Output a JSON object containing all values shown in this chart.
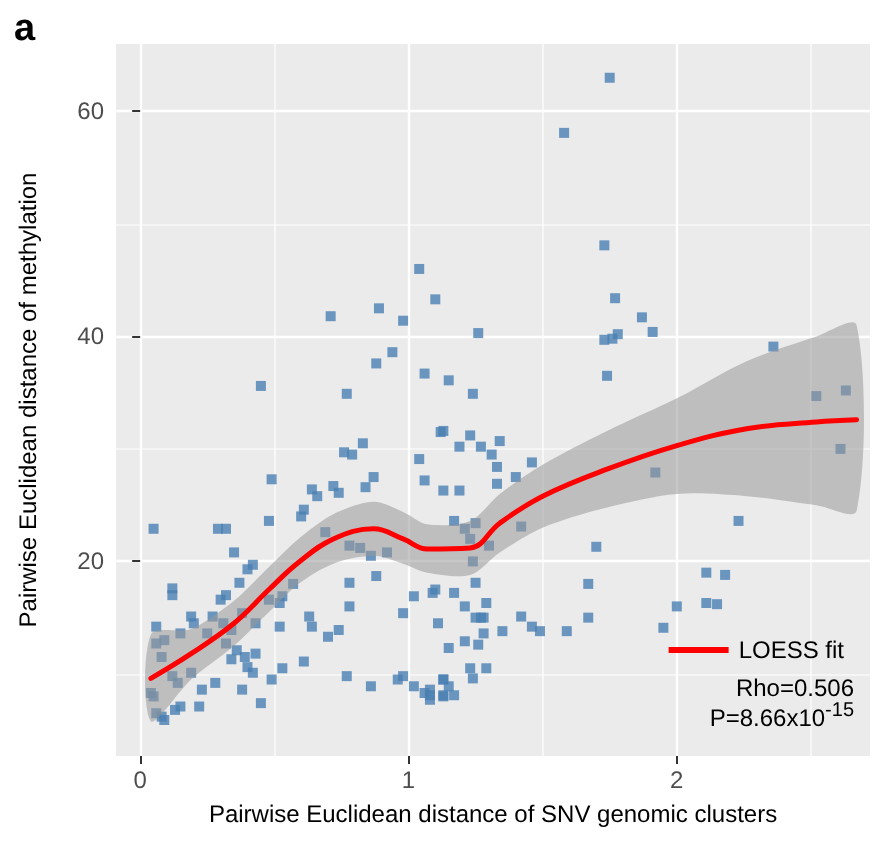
{
  "chart_data": {
    "type": "scatter",
    "title": "a",
    "xlabel": "Pairwise Euclidean distance of SNV genomic clusters",
    "ylabel": "Pairwise Euclidean distance of methylation",
    "xlim": [
      -0.09,
      2.72
    ],
    "ylim": [
      2.7,
      66
    ],
    "xticks": [
      0,
      1,
      2
    ],
    "yticks": [
      20,
      40,
      60
    ],
    "grid": true,
    "legend": "bottom right",
    "marker": "square",
    "annotations": [
      "Rho=0.506",
      "P=8.66x10$^{-15}$"
    ],
    "series": [
      {
        "color": "#4a7fb3",
        "x": [
          0.45,
          0.71,
          0.77,
          0.88,
          0.89,
          0.94,
          0.98,
          1.04,
          1.06,
          1.1,
          1.15,
          1.75,
          1.58,
          1.73,
          1.77,
          1.87,
          1.91,
          1.78,
          1.76,
          1.73,
          1.74,
          1.26,
          1.24,
          2.36,
          2.52,
          2.63,
          0.05,
          0.29,
          0.32,
          0.49,
          0.76,
          0.79,
          0.83,
          0.87,
          0.64,
          0.66,
          0.72,
          0.74,
          0.84,
          1.04,
          1.12,
          1.06,
          0.35,
          0.42,
          0.4,
          0.48,
          0.61,
          0.6,
          0.69,
          0.78,
          0.82,
          0.86,
          0.92,
          0.88,
          0.78,
          0.57,
          0.12,
          0.12,
          0.3,
          0.32,
          0.37,
          0.48,
          0.52,
          0.53,
          0.78,
          0.74,
          0.98,
          1.02,
          1.09,
          1.11,
          0.19,
          0.2,
          0.27,
          0.31,
          0.34,
          0.38,
          0.43,
          0.06,
          0.09,
          0.15,
          0.25,
          0.32,
          0.36,
          0.39,
          0.34,
          0.43,
          0.4,
          0.42,
          0.52,
          0.63,
          0.64,
          0.7,
          0.61,
          0.53,
          0.49,
          0.45,
          0.06,
          0.08,
          0.12,
          0.14,
          0.19,
          0.23,
          0.22,
          0.28,
          0.38,
          0.04,
          0.05,
          0.06,
          0.09,
          0.08,
          0.15,
          0.13,
          0.77,
          0.86,
          0.96,
          0.98,
          1.02,
          1.06,
          1.08,
          1.13,
          1.13,
          1.13,
          1.23,
          1.19,
          1.27,
          1.34,
          1.31,
          1.33,
          1.33,
          1.4,
          1.46,
          1.13,
          1.19,
          1.17,
          1.21,
          1.25,
          1.23,
          1.24,
          1.3,
          1.42,
          1.7,
          1.92,
          2.23,
          2.61,
          1.1,
          1.17,
          1.25,
          1.21,
          1.29,
          1.25,
          1.27,
          1.28,
          1.35,
          1.28,
          1.26,
          1.21,
          1.15,
          1.42,
          1.46,
          1.49,
          1.59,
          1.67,
          1.67,
          1.95,
          2.0,
          2.11,
          2.18,
          2.11,
          2.15,
          1.23,
          1.29,
          1.24,
          1.13,
          1.15,
          1.17,
          1.13,
          1.08,
          1.08
        ],
        "values": [
          35.6,
          41.8,
          34.9,
          37.6,
          42.5,
          38.6,
          41.4,
          46.0,
          36.7,
          43.3,
          36.1,
          63.0,
          58.1,
          48.1,
          43.4,
          41.7,
          40.4,
          40.2,
          39.8,
          39.7,
          36.5,
          40.3,
          34.9,
          39.1,
          34.7,
          35.2,
          22.9,
          22.9,
          22.9,
          27.3,
          29.7,
          29.5,
          30.5,
          27.5,
          26.4,
          25.8,
          26.7,
          26.1,
          26.6,
          29.1,
          31.5,
          27.2,
          20.8,
          19.7,
          19.3,
          23.6,
          24.6,
          24.0,
          22.6,
          21.4,
          21.2,
          20.5,
          20.8,
          18.7,
          18.1,
          18.0,
          17.6,
          17.0,
          16.6,
          17.0,
          18.1,
          16.6,
          16.3,
          16.9,
          16.0,
          13.9,
          15.4,
          16.9,
          17.2,
          14.5,
          15.1,
          14.5,
          15.1,
          14.5,
          13.9,
          15.4,
          14.5,
          14.2,
          13.0,
          13.6,
          13.6,
          12.7,
          12.1,
          11.5,
          11.3,
          11.8,
          10.6,
          10.1,
          14.2,
          15.1,
          14.2,
          13.3,
          11.1,
          10.5,
          9.5,
          7.4,
          12.7,
          11.5,
          9.8,
          9.2,
          10.1,
          8.6,
          7.1,
          9.2,
          8.6,
          8.3,
          8.0,
          6.5,
          5.9,
          6.2,
          7.1,
          6.8,
          9.8,
          8.9,
          9.5,
          9.8,
          8.9,
          8.3,
          8.6,
          8.0,
          9.5,
          31.6,
          31.2,
          30.2,
          30.2,
          30.7,
          29.5,
          28.4,
          26.9,
          27.5,
          28.8,
          26.3,
          26.3,
          23.6,
          22.9,
          23.4,
          22.0,
          20.0,
          21.4,
          23.1,
          21.3,
          27.9,
          23.6,
          30.0,
          17.5,
          17.2,
          18.1,
          16.0,
          16.3,
          15.0,
          15.0,
          15.0,
          13.8,
          13.6,
          12.6,
          12.9,
          12.3,
          15.1,
          14.2,
          13.8,
          13.8,
          18.0,
          15.0,
          14.1,
          16.0,
          19.0,
          18.8,
          16.3,
          16.2,
          10.5,
          10.5,
          9.6,
          9.5,
          8.9,
          8.1,
          8.1,
          8.1,
          7.7
        ]
      },
      {
        "type": "line",
        "name": "LOESS fit",
        "color": "#ff0000",
        "marker": "none",
        "line_style": "solid",
        "x": [
          0.04,
          0.19,
          0.35,
          0.48,
          0.59,
          0.72,
          0.87,
          0.98,
          1.07,
          1.23,
          1.34,
          1.5,
          1.74,
          2.0,
          2.26,
          2.52,
          2.67
        ],
        "values": [
          9.6,
          11.8,
          14.5,
          17.5,
          19.9,
          22.0,
          22.9,
          22.0,
          21.1,
          21.2,
          23.4,
          25.8,
          28.2,
          30.3,
          31.8,
          32.4,
          32.6
        ],
        "lower": [
          5.8,
          9.5,
          12.5,
          15.5,
          18.0,
          19.8,
          20.5,
          19.8,
          19.0,
          18.8,
          20.8,
          23.0,
          24.8,
          26.0,
          25.8,
          25.0,
          24.5
        ],
        "upper": [
          13.5,
          14.0,
          16.5,
          19.5,
          22.0,
          24.2,
          25.3,
          24.4,
          23.3,
          23.6,
          26.0,
          28.6,
          31.6,
          34.5,
          37.8,
          40.0,
          41.0
        ]
      }
    ]
  }
}
